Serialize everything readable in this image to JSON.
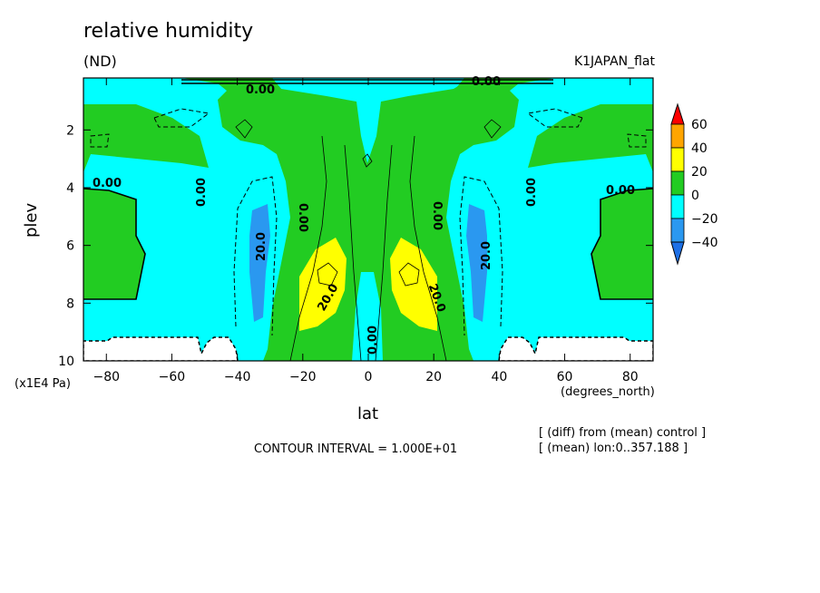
{
  "title": "relative humidity",
  "units": "(ND)",
  "run": "K1JAPAN_flat",
  "notes": [
    "[ (diff) from (mean) control ]",
    "[ (mean) lon:0..357.188 ]"
  ],
  "contour_interval": "CONTOUR INTERVAL = 1.000E+01",
  "colors": {
    "lt-40": "#1e90ff",
    "m40-m20": "#2aa0ff",
    "m20-0": "#00ffff",
    "0-20": "#22cc22",
    "20-40": "#ffff00",
    "40-60": "#ffa500",
    "gt60": "#ff0000"
  },
  "chart_data": {
    "type": "contour",
    "title": "relative humidity",
    "units": "(ND)",
    "xlabel": "lat",
    "xunit": "(degrees_north)",
    "ylabel": "plev",
    "yunit": "(x1E4 Pa)",
    "xlim": [
      -87,
      87
    ],
    "ylim": [
      10,
      0.2
    ],
    "xticks": [
      -80,
      -60,
      -40,
      -20,
      0,
      20,
      40,
      60,
      80
    ],
    "yticks": [
      2,
      4,
      6,
      8,
      10
    ],
    "colorbar": {
      "levels": [
        -40,
        -20,
        0,
        20,
        40,
        60
      ],
      "labels": [
        "60",
        "40",
        "20",
        "0",
        "−20",
        "−40"
      ]
    },
    "contour_labels": [
      "0.00",
      "0.00",
      "0.00",
      "0.00",
      "0.00",
      "0.00",
      "0.00",
      "0.00",
      "0.00",
      "20.0",
      "20.0",
      "20.0",
      "20.0",
      "20.0"
    ],
    "features": [
      {
        "kind": "max",
        "lat": -13,
        "plev": 7.0,
        "approx": 35
      },
      {
        "kind": "max",
        "lat": 13,
        "plev": 7.0,
        "approx": 35
      },
      {
        "kind": "min",
        "lat": -34,
        "plev": 6.5,
        "approx": -25
      },
      {
        "kind": "min",
        "lat": 34,
        "plev": 6.5,
        "approx": -25
      }
    ]
  }
}
